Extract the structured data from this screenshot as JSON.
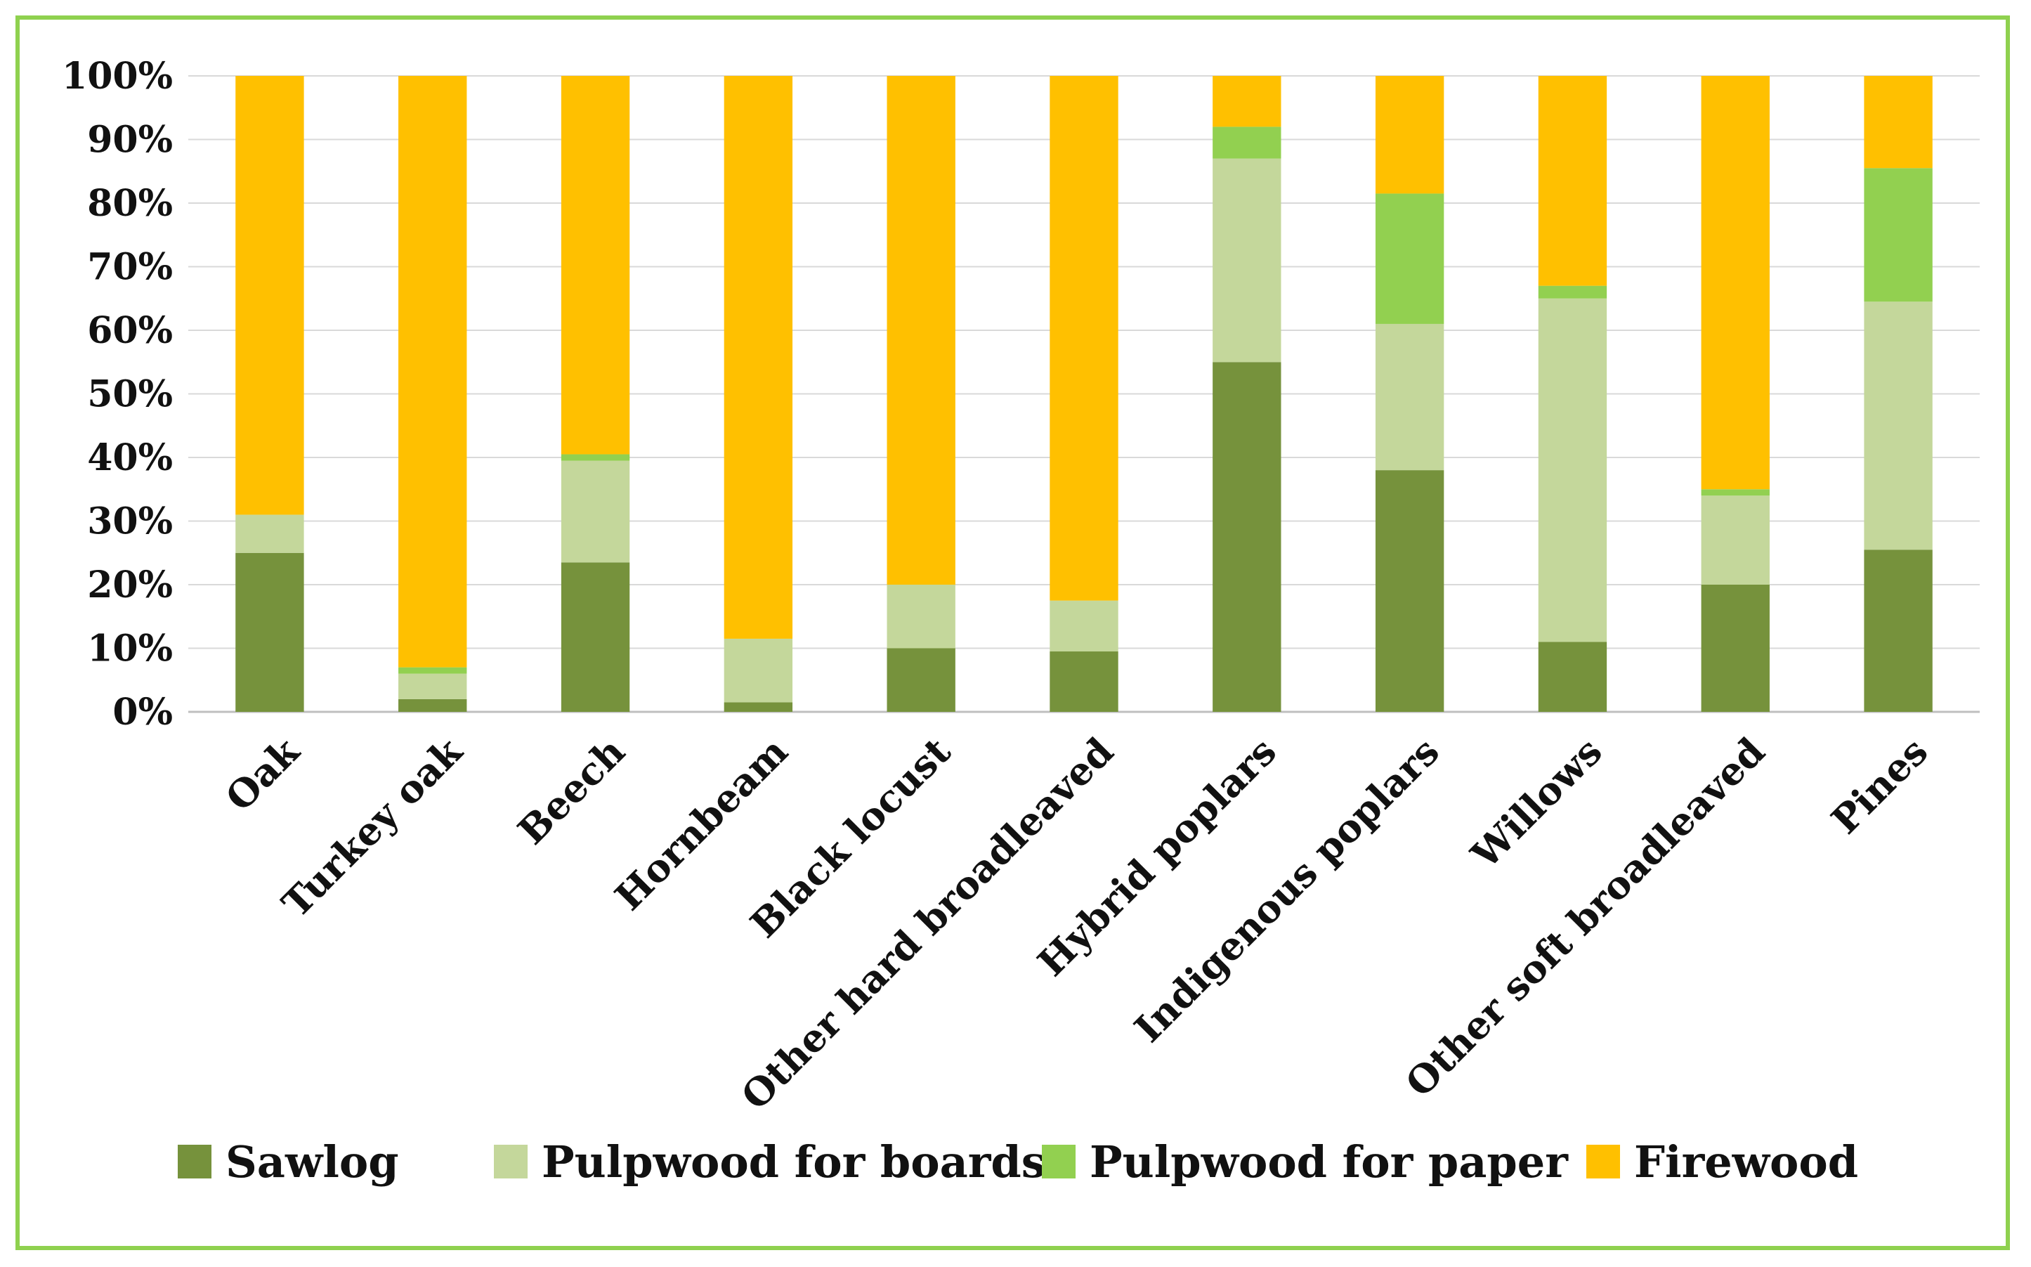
{
  "chart_data": {
    "type": "bar",
    "stacked": true,
    "percent": true,
    "categories": [
      "Oak",
      "Turkey oak",
      "Beech",
      "Hornbeam",
      "Black locust",
      "Other hard broadleaved",
      "Hybrid poplars",
      "Indigenous poplars",
      "Willows",
      "Other soft broadleaved",
      "Pines"
    ],
    "series": [
      {
        "name": "Sawlog",
        "color": "#76923c",
        "values": [
          25,
          2,
          23.5,
          1.5,
          10,
          9.5,
          55,
          38,
          11,
          20,
          25.5
        ]
      },
      {
        "name": "Pulpwood for boards",
        "color": "#c4d79b",
        "values": [
          6,
          4,
          16,
          10,
          10,
          8,
          32,
          23,
          54,
          14,
          39
        ]
      },
      {
        "name": "Pulpwood for paper",
        "color": "#92d050",
        "values": [
          0,
          1,
          1,
          0,
          0,
          0,
          5,
          20.5,
          2,
          1,
          21
        ]
      },
      {
        "name": "Firewood",
        "color": "#ffc000",
        "values": [
          69,
          93,
          59.5,
          88.5,
          80,
          82.5,
          8,
          18.5,
          33,
          65,
          14.5
        ]
      }
    ],
    "yticks": [
      "0%",
      "10%",
      "20%",
      "30%",
      "40%",
      "50%",
      "60%",
      "70%",
      "80%",
      "90%",
      "100%"
    ],
    "ylim": [
      0,
      100
    ],
    "grid": true,
    "legend_position": "bottom"
  }
}
